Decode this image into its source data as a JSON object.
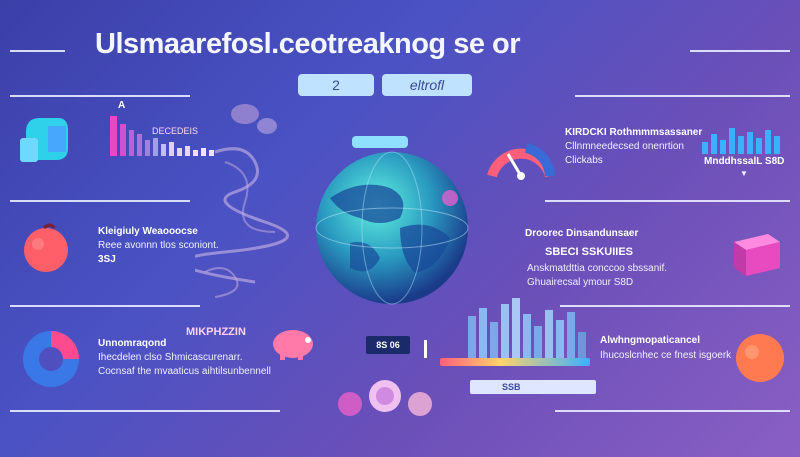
{
  "title": "Ulsmaarefosl.ceotreaknog se or",
  "pills": {
    "left": "2",
    "right": "eltrofl"
  },
  "globe_badge": "",
  "left": {
    "block1": {
      "small": "A",
      "caption": "DECEDEIS"
    },
    "block2": {
      "line1": "Kleigiuly Weaooocse",
      "line2": "Reee avonnn tlos sconiont.",
      "line3": "3SJ"
    },
    "block3": {
      "line1": "Unnomraqond",
      "line2": "Ihecdelen clso Shmicascurenarr.",
      "line3": "Cocnsaf the mvaaticus aihtilsunbennell",
      "tag": "MIKPHZZIN"
    }
  },
  "right": {
    "block1": {
      "line1": "KIRDCKI Rothmmmsassaner",
      "line2": "Cllnmneedecsed onenrtion",
      "line3": "Clickabs",
      "value": "MnddhssalL S8D"
    },
    "block2": {
      "line1": "Droorec Dinsandunsaer",
      "line2": "SBECI SSKUIIES",
      "line3": "Anskmatdttia conccoo sbssanif.",
      "line4": "Ghuairecsal ymour S8D"
    },
    "block3": {
      "line1": "Alwhngmopaticancel",
      "line2": "Ihucoslcnhec ce fnest isgoerk"
    }
  },
  "bottom": {
    "chart_label": "8S 06",
    "slider_label": "SSB"
  },
  "colors": {
    "accent_pink": "#e040a0",
    "accent_teal": "#5fe0d0",
    "accent_coral": "#ff6b6b",
    "line": "#e9ecff"
  },
  "icons": [
    "hand-icon",
    "bar-chart-icon",
    "globe-icon",
    "gauge-icon",
    "apple-icon",
    "pie-chart-icon",
    "cube-icon",
    "piggy-bank-icon",
    "coins-icon"
  ]
}
